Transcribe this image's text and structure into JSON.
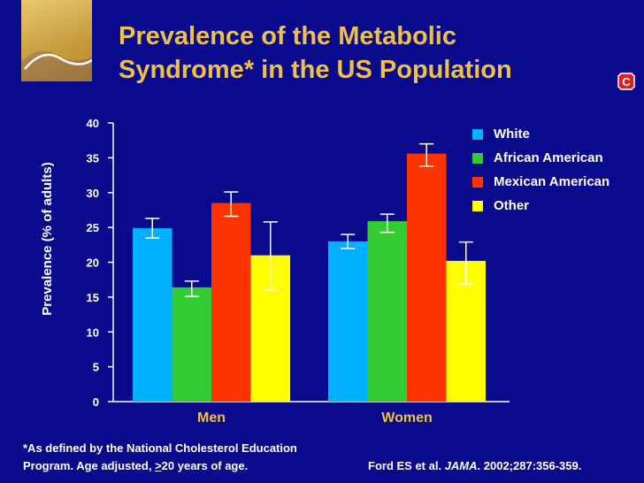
{
  "title": {
    "line1": "Prevalence of the Metabolic",
    "line2": "Syndrome* in the US Population"
  },
  "badge": "C",
  "colors": {
    "background": "#0a0a8c",
    "title": "#f0c044",
    "White": "#00b0ff",
    "African American": "#33cc33",
    "Mexican American": "#ff3300",
    "Other": "#ffff00"
  },
  "footnote": {
    "line1": "*As defined by the National Cholesterol Education",
    "line2_pre": "Program. Age adjusted, ",
    "line2_ge": ">",
    "line2_post": "20 years of age."
  },
  "citation": {
    "authors": "Ford ES et al. ",
    "journal": "JAMA",
    "details": ". 2002;287:356-359."
  },
  "chart_data": {
    "type": "bar",
    "title": "Prevalence of the Metabolic Syndrome* in the US Population",
    "xlabel": "",
    "ylabel": "Prevalence (% of adults)",
    "ylim": [
      0,
      40
    ],
    "yticks": [
      0,
      5,
      10,
      15,
      20,
      25,
      30,
      35,
      40
    ],
    "categories": [
      "Men",
      "Women"
    ],
    "legend_position": "top-right",
    "series": [
      {
        "name": "White",
        "values": [
          24.9,
          23.0
        ],
        "err_low": [
          23.5,
          22.0
        ],
        "err_high": [
          26.3,
          24.0
        ]
      },
      {
        "name": "African American",
        "values": [
          16.4,
          25.9
        ],
        "err_low": [
          15.1,
          24.3
        ],
        "err_high": [
          17.3,
          26.9
        ]
      },
      {
        "name": "Mexican American",
        "values": [
          28.5,
          35.6
        ],
        "err_low": [
          26.6,
          33.8
        ],
        "err_high": [
          30.1,
          37.0
        ]
      },
      {
        "name": "Other",
        "values": [
          21.0,
          20.2
        ],
        "err_low": [
          16.0,
          16.9
        ],
        "err_high": [
          25.8,
          22.9
        ]
      }
    ]
  }
}
